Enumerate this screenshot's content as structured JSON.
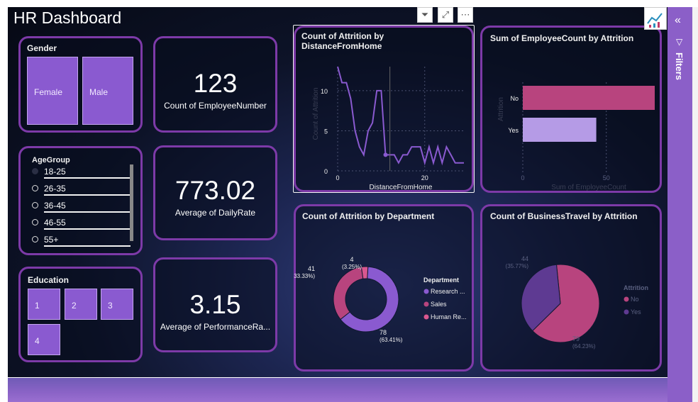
{
  "dashboard": {
    "title": "HR Dashboard"
  },
  "gender": {
    "title": "Gender",
    "options": [
      "Female",
      "Male"
    ]
  },
  "age": {
    "title": "AgeGroup",
    "options": [
      "18-25",
      "26-35",
      "36-45",
      "46-55",
      "55+"
    ]
  },
  "education": {
    "title": "Education",
    "options": [
      "1",
      "2",
      "3",
      "4"
    ]
  },
  "kpis": [
    {
      "value": "123",
      "label": "Count of EmployeeNumber"
    },
    {
      "value": "773.02",
      "label": "Average of DailyRate"
    },
    {
      "value": "3.15",
      "label": "Average of PerformanceRa..."
    }
  ],
  "chart_data": [
    {
      "type": "line",
      "title": "Count of Attrition by DistanceFromHome",
      "xlabel": "DistanceFromHome",
      "ylabel": "Count of Attrition",
      "xlim": [
        0,
        29
      ],
      "ylim": [
        0,
        13
      ],
      "xticks": [
        "0",
        "20"
      ],
      "yticks": [
        "0",
        "5",
        "10"
      ],
      "grid": true,
      "x": [
        0,
        1,
        2,
        3,
        4,
        5,
        6,
        7,
        8,
        9,
        10,
        11,
        12,
        13,
        14,
        15,
        16,
        17,
        18,
        19,
        20,
        21,
        22,
        23,
        24,
        25,
        26,
        27,
        28,
        29
      ],
      "values": [
        13,
        11,
        11,
        9,
        5,
        3,
        2,
        5,
        6,
        10,
        10,
        2,
        2,
        2,
        1,
        2,
        2,
        3,
        3,
        3,
        1,
        3,
        1,
        3,
        1,
        3,
        2,
        1,
        1,
        1
      ],
      "color": "#8a5ad0"
    },
    {
      "type": "bar",
      "title": "Sum of EmployeeCount by Attrition",
      "xlabel": "Sum of EmployeeCount",
      "ylabel": "Attrition",
      "categories": [
        "No",
        "Yes"
      ],
      "values": [
        79,
        44
      ],
      "xticks": [
        "0",
        "50"
      ],
      "xlim": [
        0,
        79
      ],
      "colors": [
        "#b8447e",
        "#b59be6"
      ]
    },
    {
      "type": "pie",
      "subtype": "donut",
      "title": "Count of Attrition by Department",
      "legend_title": "Department",
      "legend_position": "right",
      "slices": [
        {
          "name": "Research ...",
          "value": 78,
          "label": "78",
          "pct": "(63.41%)",
          "color": "#8a5ad0"
        },
        {
          "name": "Sales",
          "value": 41,
          "label": "41",
          "pct": "(33.33%)",
          "color": "#b8447e"
        },
        {
          "name": "Human Re...",
          "value": 4,
          "label": "4",
          "pct": "(3.25%)",
          "color": "#d9578f"
        }
      ]
    },
    {
      "type": "pie",
      "title": "Count of BusinessTravel by Attrition",
      "legend_title": "Attrition",
      "legend_position": "right",
      "slices": [
        {
          "name": "No",
          "value": 79,
          "label": "79",
          "pct": "(64.23%)",
          "color": "#b8447e"
        },
        {
          "name": "Yes",
          "value": 44,
          "label": "44",
          "pct": "(35.77%)",
          "color": "#5e3a92"
        }
      ]
    }
  ],
  "filters_pane": {
    "label": "Filters"
  }
}
